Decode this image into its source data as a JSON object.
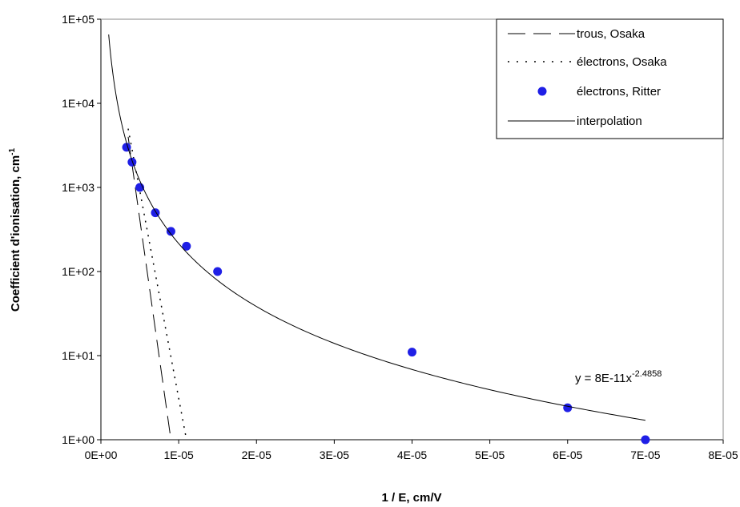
{
  "chart_data": {
    "type": "scatter",
    "xlabel": "1 /  E, cm/V",
    "ylabel": "Coefficient d'ionisation, cm",
    "ylabel_sup": "-1",
    "y_scale": "log",
    "xlim": [
      0,
      8e-05
    ],
    "ylim": [
      1,
      100000
    ],
    "x_tick_labels": [
      "0E+00",
      "1E-05",
      "2E-05",
      "3E-05",
      "4E-05",
      "5E-05",
      "6E-05",
      "7E-05",
      "8E-05"
    ],
    "y_tick_labels": [
      "1E+00",
      "1E+01",
      "1E+02",
      "1E+03",
      "1E+04",
      "1E+05"
    ],
    "grid": false,
    "legend_position": "top-right",
    "series": [
      {
        "name": "trous, Osaka",
        "type": "line",
        "style": "long-dash",
        "color": "#000000",
        "x": [
          3.5e-06,
          9e-06
        ],
        "y": [
          4000,
          1
        ]
      },
      {
        "name": "électrons, Osaka",
        "type": "line",
        "style": "dotted",
        "color": "#000000",
        "x": [
          3.5e-06,
          1.1e-05
        ],
        "y": [
          5000,
          1
        ]
      },
      {
        "name": "électrons, Ritter",
        "type": "scatter",
        "color": "#1f1fe6",
        "x": [
          3.3e-06,
          4e-06,
          5e-06,
          7e-06,
          9e-06,
          1.1e-05,
          1.5e-05,
          4e-05,
          6e-05,
          7e-05
        ],
        "y": [
          3000,
          2000,
          1000,
          500,
          300,
          200,
          100,
          11,
          2.4,
          1
        ]
      },
      {
        "name": "interpolation",
        "type": "line",
        "style": "solid",
        "color": "#000000",
        "x_range": [
          1e-06,
          7e-05
        ],
        "formula": "y = 8E-11*x^-2.4858"
      }
    ],
    "annotation": {
      "text": "y = 8E-11x",
      "sup": "-2.4858"
    }
  }
}
